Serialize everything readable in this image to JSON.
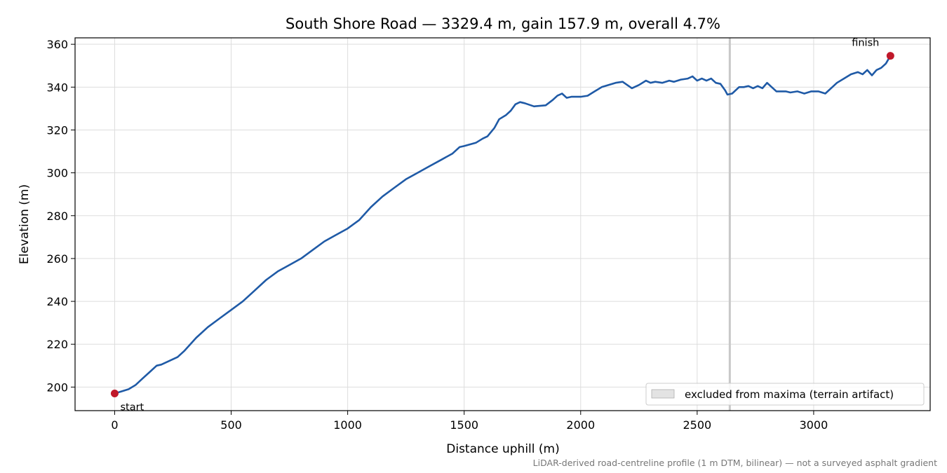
{
  "chart_data": {
    "type": "line",
    "title": "South Shore Road — 3329.4 m, gain 157.9 m, overall 4.7%",
    "xlabel": "Distance uphill (m)",
    "ylabel": "Elevation (m)",
    "xlim": [
      -170,
      3500
    ],
    "ylim": [
      189,
      363
    ],
    "x_ticks": [
      0,
      500,
      1000,
      1500,
      2000,
      2500,
      3000
    ],
    "y_ticks": [
      200,
      220,
      240,
      260,
      280,
      300,
      320,
      340,
      360
    ],
    "x_tick_labels": [
      "0",
      "500",
      "1000",
      "1500",
      "2000",
      "2500",
      "3000"
    ],
    "y_tick_labels": [
      "200",
      "220",
      "240",
      "260",
      "280",
      "300",
      "320",
      "340",
      "360"
    ],
    "grid": true,
    "legend_position": "lower-right",
    "colors": {
      "line": "#1f5aa6",
      "marker": "#c0182a",
      "excluded": "#c8c8c8"
    },
    "series": [
      {
        "x": [
          0,
          30,
          60,
          90,
          120,
          150,
          180,
          200,
          230,
          270,
          300,
          350,
          400,
          450,
          500,
          550,
          600,
          650,
          700,
          750,
          800,
          850,
          900,
          950,
          1000,
          1050,
          1100,
          1150,
          1200,
          1250,
          1300,
          1350,
          1400,
          1450,
          1480,
          1500,
          1550,
          1580,
          1600,
          1630,
          1650,
          1680,
          1700,
          1720,
          1740,
          1760,
          1800,
          1850,
          1880,
          1900,
          1920,
          1940,
          1960,
          1980,
          2000,
          2030,
          2060,
          2090,
          2120,
          2150,
          2180,
          2200,
          2220,
          2250,
          2280,
          2300,
          2320,
          2350,
          2380,
          2400,
          2430,
          2460,
          2480,
          2500,
          2520,
          2540,
          2560,
          2580,
          2600,
          2620,
          2630,
          2650,
          2680,
          2700,
          2720,
          2740,
          2760,
          2780,
          2800,
          2820,
          2840,
          2860,
          2880,
          2900,
          2930,
          2960,
          2990,
          3020,
          3050,
          3080,
          3100,
          3130,
          3160,
          3190,
          3210,
          3230,
          3250,
          3270,
          3290,
          3310,
          3329.4
        ],
        "y": [
          197,
          198,
          199,
          201,
          204,
          207,
          210,
          210.5,
          212,
          214,
          217,
          223,
          228,
          232,
          236,
          240,
          245,
          250,
          254,
          257,
          260,
          264,
          268,
          271,
          274,
          278,
          284,
          289,
          293,
          297,
          300,
          303,
          306,
          309,
          312,
          312.5,
          314,
          316,
          317,
          321,
          325,
          327,
          329,
          332,
          333,
          332.5,
          331,
          331.5,
          334,
          336,
          337,
          335,
          335.5,
          335.5,
          335.5,
          336,
          338,
          340,
          341,
          342,
          342.5,
          341,
          339.5,
          341,
          343,
          342,
          342.5,
          342,
          343,
          342.5,
          343.5,
          344,
          345,
          343,
          344,
          343,
          344,
          342,
          341.5,
          338.5,
          336.5,
          337,
          340,
          340,
          340.5,
          339.5,
          340.5,
          339.5,
          342,
          340,
          338,
          338,
          338,
          337.5,
          338,
          337,
          338,
          338,
          337,
          340,
          342,
          344,
          346,
          347,
          346,
          348,
          345.5,
          348,
          349,
          351,
          354.6
        ]
      }
    ],
    "markers": [
      {
        "x": 0,
        "y": 197,
        "label": "start"
      },
      {
        "x": 3329.4,
        "y": 354.6,
        "label": "finish"
      }
    ],
    "excluded_region": {
      "x": 2640
    },
    "legend": [
      {
        "label": "excluded from maxima (terrain artifact)"
      }
    ],
    "footnote": "LiDAR-derived road-centreline profile (1 m DTM, bilinear) — not a surveyed asphalt gradient"
  }
}
